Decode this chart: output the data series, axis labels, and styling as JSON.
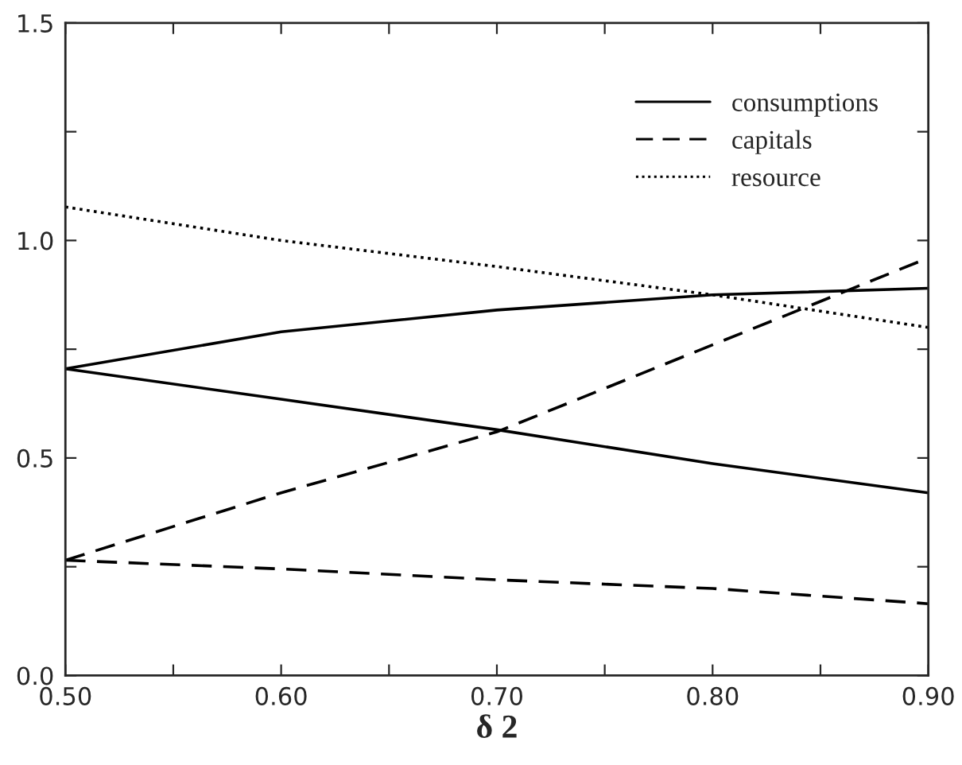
{
  "chart_data": {
    "type": "line",
    "xlabel": "δ 2",
    "x": [
      0.5,
      0.6,
      0.7,
      0.8,
      0.9
    ],
    "series": [
      {
        "name": "consumptions",
        "color": "#000000",
        "line_style": "solid",
        "values": [
          0.705,
          0.79,
          0.84,
          0.875,
          0.89
        ]
      },
      {
        "color": "#000000",
        "line_style": "solid",
        "values": [
          0.705,
          0.635,
          0.565,
          0.487,
          0.42
        ]
      },
      {
        "name": "capitals",
        "color": "#000000",
        "line_style": "dashed",
        "values": [
          0.265,
          0.42,
          0.56,
          0.76,
          0.96
        ]
      },
      {
        "color": "#000000",
        "line_style": "dashed",
        "values": [
          0.265,
          0.245,
          0.22,
          0.2,
          0.165
        ]
      },
      {
        "name": "resource",
        "color": "#000000",
        "line_style": "dotted",
        "values": [
          1.077,
          1.0,
          0.94,
          0.875,
          0.8
        ]
      }
    ],
    "xlim": [
      0.5,
      0.9
    ],
    "xticks": [
      {
        "value": 0.5,
        "label": "0.50"
      },
      {
        "value": 0.55,
        "label": null
      },
      {
        "value": 0.6,
        "label": "0.60"
      },
      {
        "value": 0.65,
        "label": null
      },
      {
        "value": 0.7,
        "label": "0.70"
      },
      {
        "value": 0.75,
        "label": null
      },
      {
        "value": 0.8,
        "label": "0.80"
      },
      {
        "value": 0.85,
        "label": null
      },
      {
        "value": 0.9,
        "label": "0.90"
      }
    ],
    "ylim": [
      0,
      1.5
    ],
    "yticks": [
      {
        "value": 0,
        "label": "0.0"
      },
      {
        "value": 0.25,
        "label": null
      },
      {
        "value": 0.5,
        "label": "0.5"
      },
      {
        "value": 0.75,
        "label": null
      },
      {
        "value": 1.0,
        "label": "1.0"
      },
      {
        "value": 1.25,
        "label": null
      },
      {
        "value": 1.5,
        "label": "1.5"
      }
    ],
    "grid": false,
    "legend": "top right",
    "marker": "none"
  }
}
